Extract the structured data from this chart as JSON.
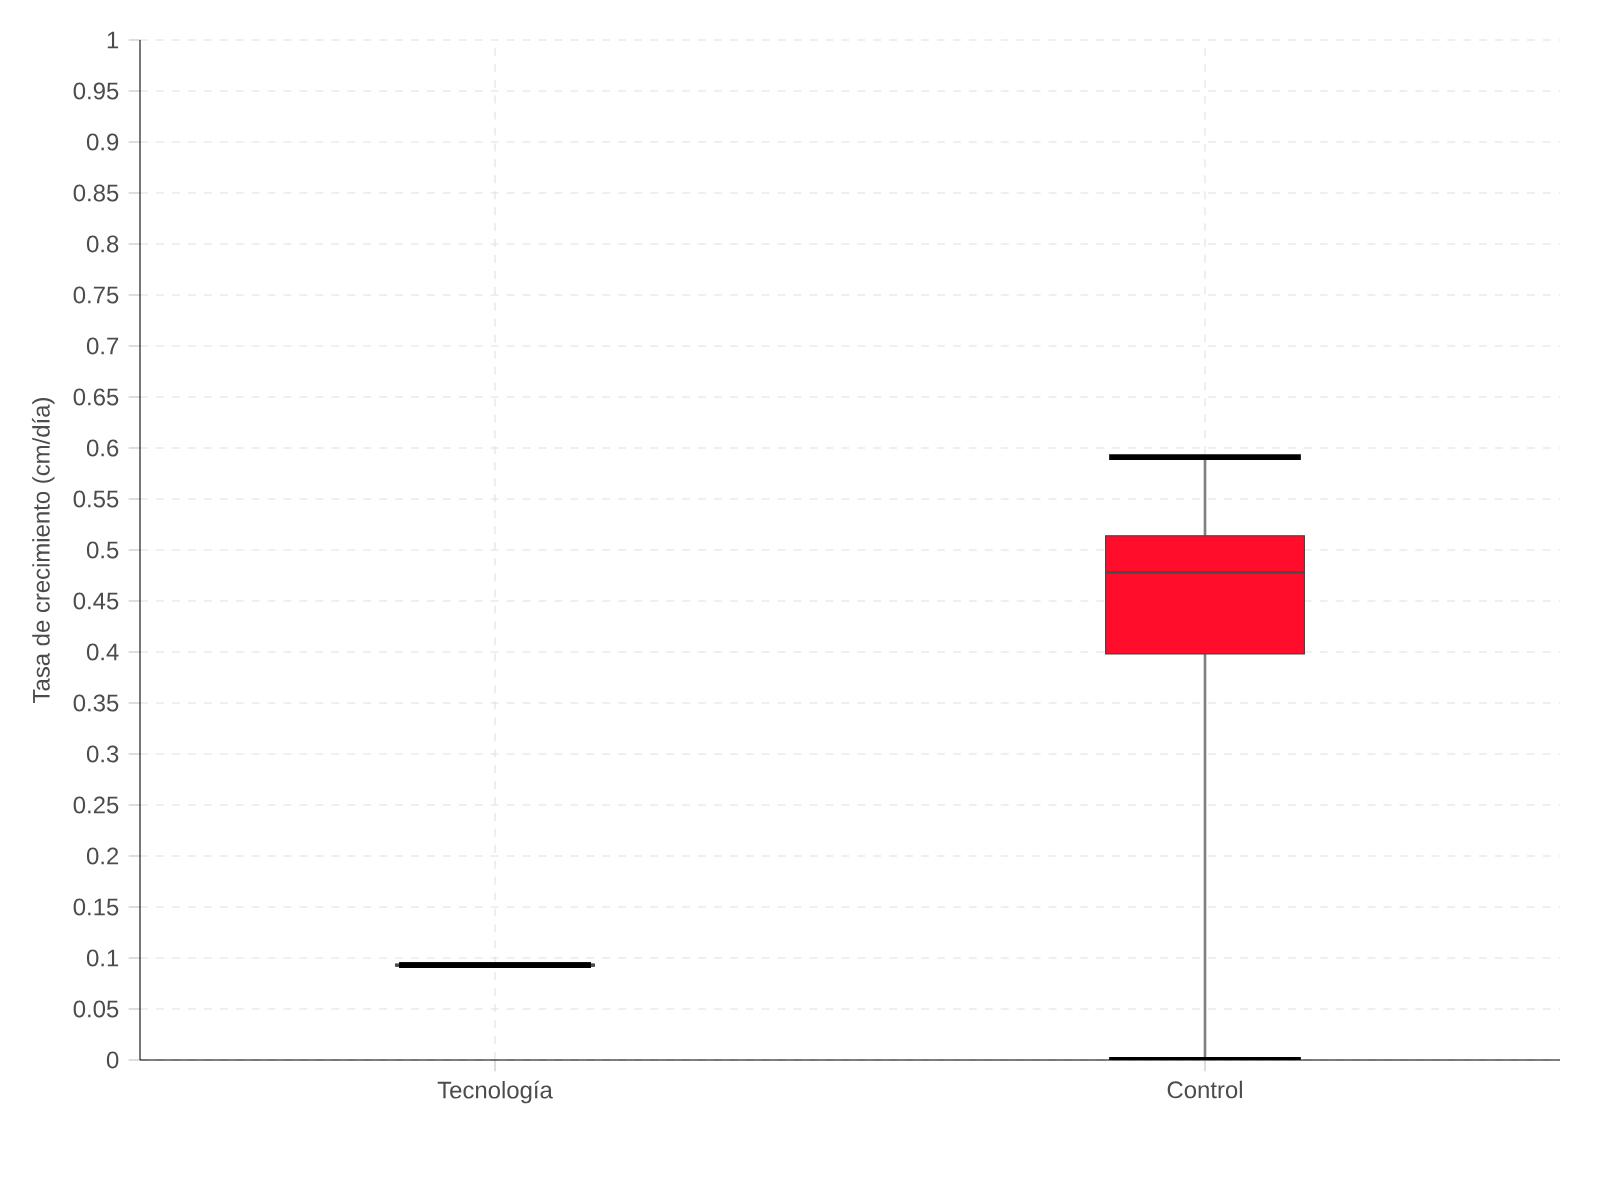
{
  "chart_data": {
    "type": "box",
    "ylabel": "Tasa de crecimiento (cm/día)",
    "categories": [
      "Tecnología",
      "Control"
    ],
    "boxes": [
      {
        "low": 0.093,
        "q1": 0.092,
        "median": 0.093,
        "q3": 0.094,
        "high": 0.093
      },
      {
        "low": 0,
        "q1": 0.398,
        "median": 0.478,
        "q3": 0.514,
        "high": 0.591
      }
    ],
    "colors": [
      "#2e9e3a",
      "#ff0d2a"
    ],
    "ylim": [
      0,
      1
    ],
    "yticks": [
      0,
      0.05,
      0.1,
      0.15,
      0.2,
      0.25,
      0.3,
      0.35,
      0.4,
      0.45,
      0.5,
      0.55,
      0.6,
      0.65,
      0.7,
      0.75,
      0.8,
      0.85,
      0.9,
      0.95,
      1
    ],
    "grid": true
  }
}
